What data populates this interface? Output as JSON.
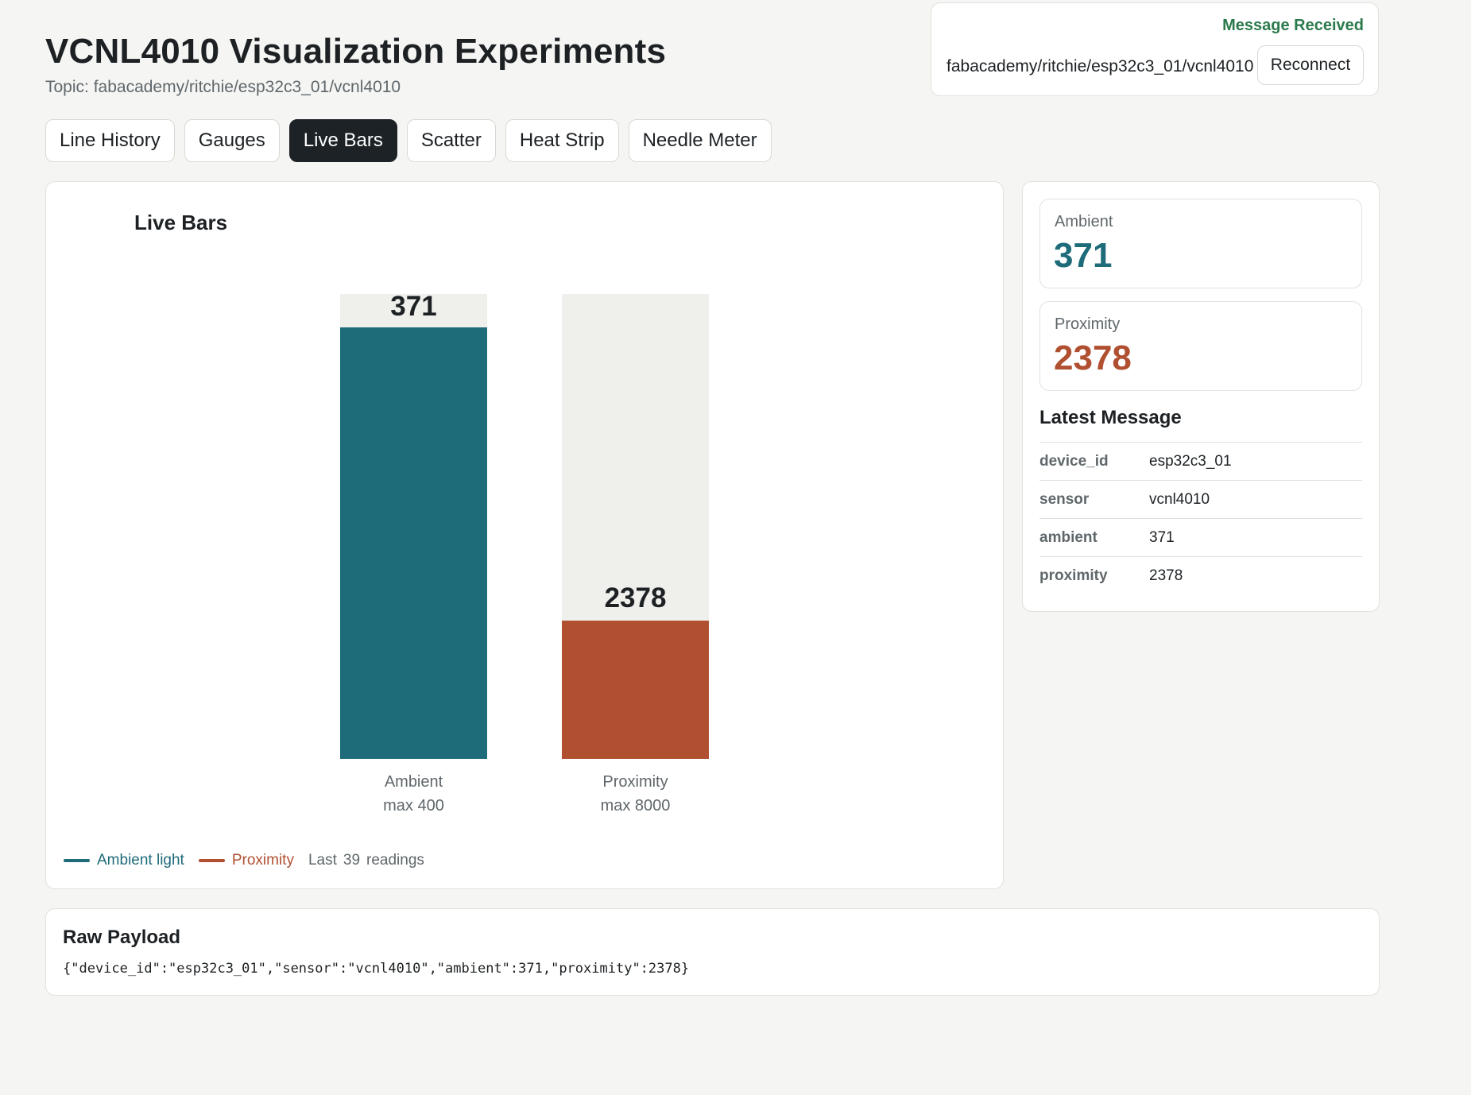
{
  "header": {
    "title": "VCNL4010 Visualization Experiments",
    "topic": "Topic: fabacademy/ritchie/esp32c3_01/vcnl4010"
  },
  "status": {
    "message": "Message Received",
    "topic": "fabacademy/ritchie/esp32c3_01/vcnl4010",
    "reconnect_label": "Reconnect",
    "color": "#2b7a4d"
  },
  "tabs": [
    {
      "label": "Line History",
      "active": false
    },
    {
      "label": "Gauges",
      "active": false
    },
    {
      "label": "Live Bars",
      "active": true
    },
    {
      "label": "Scatter",
      "active": false
    },
    {
      "label": "Heat Strip",
      "active": false
    },
    {
      "label": "Needle Meter",
      "active": false
    }
  ],
  "chart": {
    "title": "Live Bars",
    "legend": {
      "ambient_label": "Ambient light",
      "proximity_label": "Proximity",
      "last_prefix": "Last",
      "last_count": "39",
      "last_suffix": "readings"
    }
  },
  "chart_data": {
    "type": "bar",
    "title": "Live Bars",
    "categories": [
      "Ambient",
      "Proximity"
    ],
    "max_labels": [
      "max 400",
      "max 8000"
    ],
    "values": [
      371,
      2378
    ],
    "max": [
      400,
      8000
    ],
    "colors": [
      "#1e6b7a",
      "#b05030"
    ],
    "legend_position": "bottom-left"
  },
  "metrics": {
    "ambient": {
      "label": "Ambient",
      "value": "371",
      "color": "#1e6b7a"
    },
    "proximity": {
      "label": "Proximity",
      "value": "2378",
      "color": "#b05030"
    }
  },
  "latest": {
    "title": "Latest Message",
    "rows": [
      {
        "key": "device_id",
        "value": "esp32c3_01"
      },
      {
        "key": "sensor",
        "value": "vcnl4010"
      },
      {
        "key": "ambient",
        "value": "371"
      },
      {
        "key": "proximity",
        "value": "2378"
      }
    ]
  },
  "raw": {
    "title": "Raw Payload",
    "payload": "{\"device_id\":\"esp32c3_01\",\"sensor\":\"vcnl4010\",\"ambient\":371,\"proximity\":2378}"
  }
}
